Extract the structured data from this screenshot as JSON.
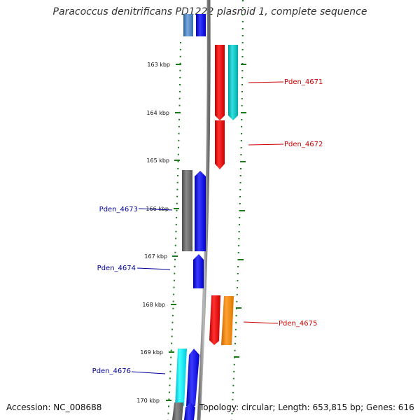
{
  "title": "Paracoccus denitrificans PD1222 plasmid 1, complete sequence",
  "accession": "Accession: NC_008688",
  "summary": "Topology: circular; Length: 653,815 bp; Genes: 616",
  "colors": {
    "backbone": "#8c8c8c",
    "tick": "#1a7a1a",
    "label_forward": "#000099",
    "label_reverse": "#cc0000",
    "gene_blue": "#0000ff",
    "gene_gray": "#6e6e6e",
    "gene_red": "#ff0000",
    "gene_cyan": "#00c8c8",
    "gene_orange": "#ff8800",
    "gene_light_blue": "#4a7fc0"
  },
  "ticks": [
    "163 kbp",
    "164 kbp",
    "165 kbp",
    "166 kbp",
    "167 kbp",
    "168 kbp",
    "169 kbp",
    "170 kbp"
  ],
  "gene_labels": {
    "pden_4671": "Pden_4671",
    "pden_4672": "Pden_4672",
    "pden_4673": "Pden_4673",
    "pden_4674": "Pden_4674",
    "pden_4675": "Pden_4675",
    "pden_4676": "Pden_4676"
  }
}
